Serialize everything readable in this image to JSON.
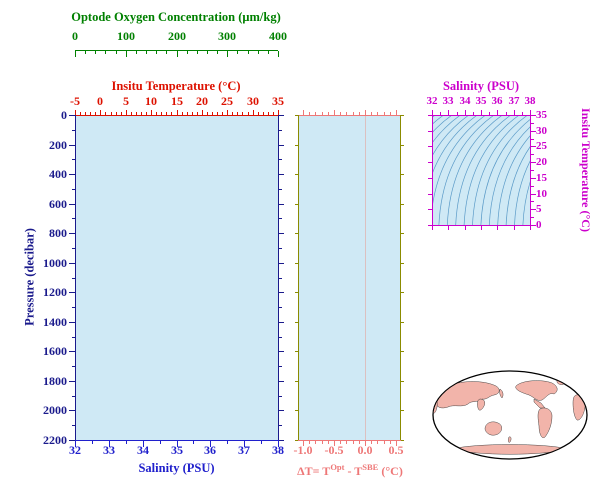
{
  "colors": {
    "oxygen": "#008000",
    "temperature": "#dd1100",
    "pressure": "#1a1a8c",
    "salinity": "#2020cc",
    "delta": "#ee7777",
    "olive": "#8b8b00",
    "ts": "#cc00cc",
    "plot_fill": "#cfe9f5",
    "contour": "#5b9bc8",
    "zero_line": "#dcc0c0",
    "land": "#f2b4aa",
    "ocean": "#ffffff"
  },
  "main_plot": {
    "oxygen_axis": {
      "title": "Optode Oxygen Concentration (μm/kg)",
      "ticks": [
        "0",
        "100",
        "200",
        "300",
        "400"
      ]
    },
    "temperature_axis": {
      "title": "Insitu Temperature (°C)",
      "ticks": [
        "-5",
        "0",
        "5",
        "10",
        "15",
        "20",
        "25",
        "30",
        "35"
      ]
    },
    "pressure_axis": {
      "title": "Pressure (decibar)",
      "ticks": [
        "0",
        "200",
        "400",
        "600",
        "800",
        "1000",
        "1200",
        "1400",
        "1600",
        "1800",
        "2000",
        "2200"
      ]
    },
    "salinity_axis": {
      "title": "Salinity (PSU)",
      "ticks": [
        "32",
        "33",
        "34",
        "35",
        "36",
        "37",
        "38"
      ]
    }
  },
  "delta_plot": {
    "title": {
      "pre": "ΔT= T",
      "sup1": "Opt",
      "mid": " - T",
      "sup2": "SBE",
      "post": " (°C)"
    },
    "ticks": [
      "-1.0",
      "-0.5",
      "0.0",
      "0.5"
    ]
  },
  "ts_plot": {
    "salinity_axis": {
      "title": "Salinity (PSU)",
      "ticks": [
        "32",
        "33",
        "34",
        "35",
        "36",
        "37",
        "38"
      ]
    },
    "temperature_axis": {
      "title": "Insitu Temperature (°C)",
      "ticks": [
        "0",
        "5",
        "10",
        "15",
        "20",
        "25",
        "30",
        "35"
      ]
    },
    "contour_count": 18
  },
  "map": {
    "type": "world-map",
    "projection": "elliptical",
    "center": "Pacific"
  },
  "chart_data": [
    {
      "type": "scatter",
      "panel": "profile",
      "ylabel": "Pressure (decibar)",
      "ylim": [
        2200,
        0
      ],
      "yticks": [
        0,
        200,
        400,
        600,
        800,
        1000,
        1200,
        1400,
        1600,
        1800,
        2000,
        2200
      ],
      "x_axes": [
        {
          "label": "Salinity (PSU)",
          "position": "bottom",
          "lim": [
            32,
            38
          ],
          "ticks": [
            32,
            33,
            34,
            35,
            36,
            37,
            38
          ]
        },
        {
          "label": "Insitu Temperature (°C)",
          "position": "top",
          "lim": [
            -5,
            35
          ],
          "ticks": [
            -5,
            0,
            5,
            10,
            15,
            20,
            25,
            30,
            35
          ]
        },
        {
          "label": "Optode Oxygen Concentration (μm/kg)",
          "position": "top-outer",
          "lim": [
            0,
            400
          ],
          "ticks": [
            0,
            100,
            200,
            300,
            400
          ]
        }
      ],
      "series": [],
      "grid": false
    },
    {
      "type": "scatter",
      "panel": "delta-temperature",
      "xlabel": "ΔT= T^Opt - T^SBE (°C)",
      "xlim": [
        -1.08,
        0.56
      ],
      "xticks": [
        -1.0,
        -0.5,
        0.0,
        0.5
      ],
      "ylim": [
        2200,
        0
      ],
      "series": [],
      "reference_line_x": 0.0
    },
    {
      "type": "line",
      "panel": "ts-diagram",
      "xlabel": "Salinity (PSU)",
      "xlim": [
        32,
        38
      ],
      "xticks": [
        32,
        33,
        34,
        35,
        36,
        37,
        38
      ],
      "ylabel": "Insitu Temperature (°C)",
      "ylim": [
        0,
        35
      ],
      "yticks": [
        0,
        5,
        10,
        15,
        20,
        25,
        30,
        35
      ],
      "content": "density isopycnal contours",
      "contour_count": 18,
      "series": []
    }
  ]
}
